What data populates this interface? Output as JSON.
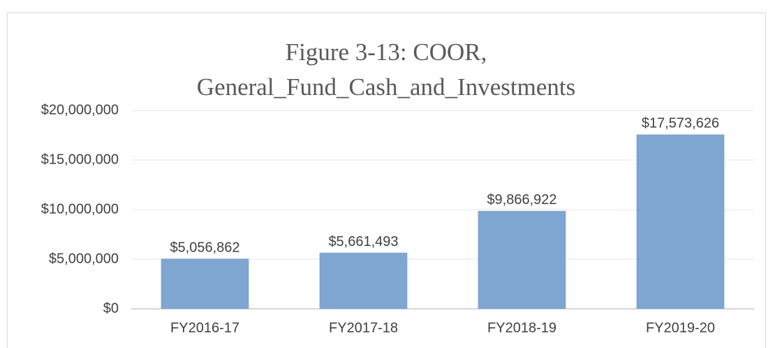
{
  "chart_data": {
    "type": "bar",
    "title": [
      "Figure 3-13: COOR,",
      "General_Fund_Cash_and_Investments"
    ],
    "categories": [
      "FY2016-17",
      "FY2017-18",
      "FY2018-19",
      "FY2019-20"
    ],
    "values": [
      5056862,
      5661493,
      9866922,
      17573626
    ],
    "value_labels": [
      "$5,056,862",
      "$5,661,493",
      "$9,866,922",
      "$17,573,626"
    ],
    "color": "#7fa5d1",
    "ylim": [
      0,
      20000000
    ],
    "yticks": [
      {
        "value": 0,
        "label": "$0"
      },
      {
        "value": 5000000,
        "label": "$5,000,000"
      },
      {
        "value": 10000000,
        "label": "$10,000,000"
      },
      {
        "value": 15000000,
        "label": "$15,000,000"
      },
      {
        "value": 20000000,
        "label": "$20,000,000"
      }
    ],
    "grid": true
  }
}
